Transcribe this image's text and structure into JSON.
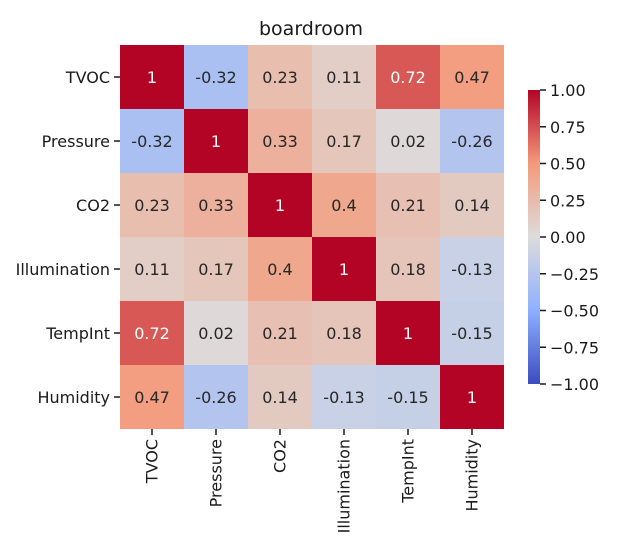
{
  "chart_data": {
    "type": "heatmap",
    "title": "boardroom",
    "xlabel": "",
    "ylabel": "",
    "row_labels": [
      "TVOC",
      "Pressure",
      "CO2",
      "Illumination",
      "TempInt",
      "Humidity"
    ],
    "col_labels": [
      "TVOC",
      "Pressure",
      "CO2",
      "Illumination",
      "TempInt",
      "Humidity"
    ],
    "matrix": [
      [
        1,
        -0.32,
        0.23,
        0.11,
        0.72,
        0.47
      ],
      [
        -0.32,
        1,
        0.33,
        0.17,
        0.02,
        -0.26
      ],
      [
        0.23,
        0.33,
        1,
        0.4,
        0.21,
        0.14
      ],
      [
        0.11,
        0.17,
        0.4,
        1,
        0.18,
        -0.13
      ],
      [
        0.72,
        0.02,
        0.21,
        0.18,
        1,
        -0.15
      ],
      [
        0.47,
        -0.26,
        0.14,
        -0.13,
        -0.15,
        1
      ]
    ],
    "colorbar": {
      "min": -1.0,
      "max": 1.0,
      "ticks": [
        1.0,
        0.75,
        0.5,
        0.25,
        0.0,
        -0.25,
        -0.5,
        -0.75,
        -1.0
      ],
      "tick_labels": [
        "1.00",
        "0.75",
        "0.50",
        "0.25",
        "0.00",
        "−0.25",
        "−0.50",
        "−0.75",
        "−1.00"
      ],
      "colormap": "coolwarm"
    },
    "colors": {
      "text_dark": "#262626",
      "text_light": "#ffffff",
      "axis": "#1a1a1a"
    }
  }
}
